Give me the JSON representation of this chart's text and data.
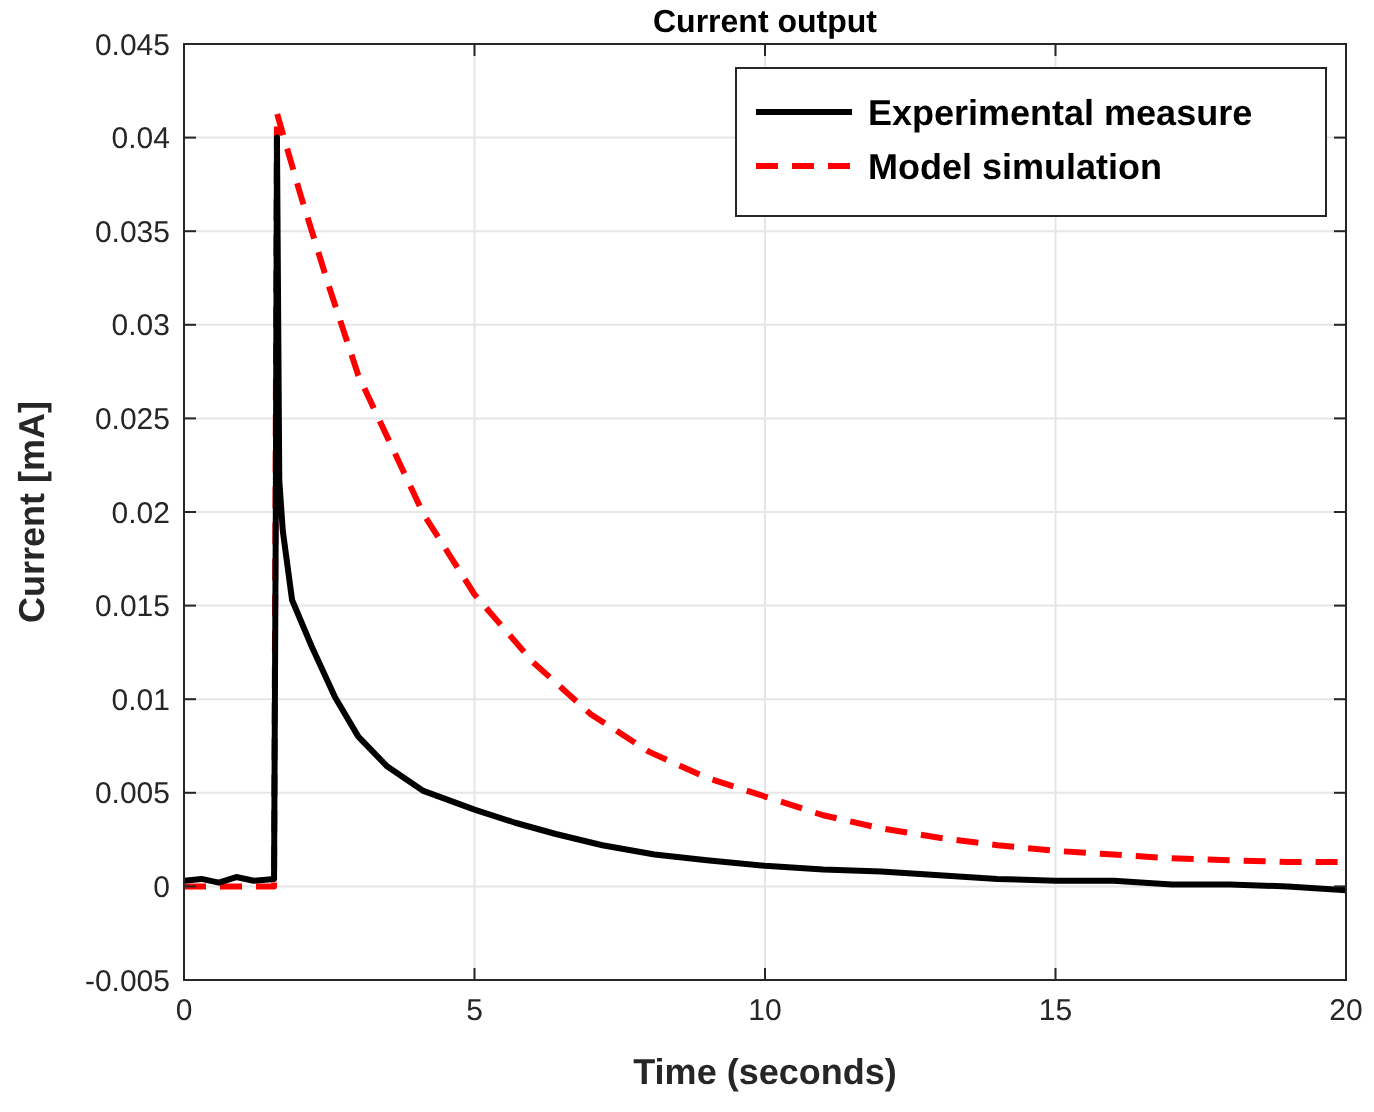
{
  "chart_data": {
    "type": "line",
    "title": "Current output",
    "xlabel": "Time (seconds)",
    "ylabel": "Current [mA]",
    "xlim": [
      0,
      20
    ],
    "xticks": [
      0,
      5,
      10,
      15,
      20
    ],
    "ylim": [
      -0.005,
      0.045
    ],
    "yticks": [
      -0.005,
      0,
      0.005,
      0.01,
      0.015,
      0.02,
      0.025,
      0.03,
      0.035,
      0.04,
      0.045
    ],
    "grid": true,
    "legend": "top right",
    "series": [
      {
        "name": "Experimental measure",
        "color": "#000000",
        "line_style": "solid",
        "x": [
          0,
          0.3,
          0.6,
          0.9,
          1.2,
          1.55,
          1.58,
          1.6,
          1.64,
          1.7,
          1.86,
          2.2,
          2.6,
          3.0,
          3.5,
          4.12,
          5,
          5.7,
          6.4,
          7.2,
          8.1,
          9,
          10,
          11,
          12,
          13,
          14,
          15,
          16,
          17,
          18,
          19,
          20
        ],
        "values": [
          0.0003,
          0.0004,
          0.0002,
          0.0005,
          0.0003,
          0.0004,
          0.02,
          0.04,
          0.0217,
          0.019,
          0.0153,
          0.0128,
          0.0101,
          0.008,
          0.0064,
          0.0051,
          0.0041,
          0.0034,
          0.0028,
          0.0022,
          0.0017,
          0.0014,
          0.0011,
          0.0009,
          0.0008,
          0.0006,
          0.0004,
          0.0003,
          0.0003,
          0.0001,
          0.0001,
          0.0,
          -0.0002
        ]
      },
      {
        "name": "Model simulation",
        "color": "#ff0000",
        "line_style": "dashed",
        "x": [
          0,
          1.55,
          1.6,
          2,
          2.5,
          3,
          3.5,
          4.12,
          5,
          6,
          7,
          8,
          9,
          10,
          11,
          12,
          13,
          14,
          15,
          16,
          17,
          18,
          19,
          20
        ],
        "values": [
          0,
          0,
          0.0413,
          0.037,
          0.032,
          0.0273,
          0.024,
          0.0199,
          0.0156,
          0.012,
          0.0092,
          0.0072,
          0.0058,
          0.0048,
          0.0038,
          0.0031,
          0.0026,
          0.0022,
          0.0019,
          0.0017,
          0.0015,
          0.0014,
          0.0013,
          0.0013
        ]
      }
    ]
  }
}
